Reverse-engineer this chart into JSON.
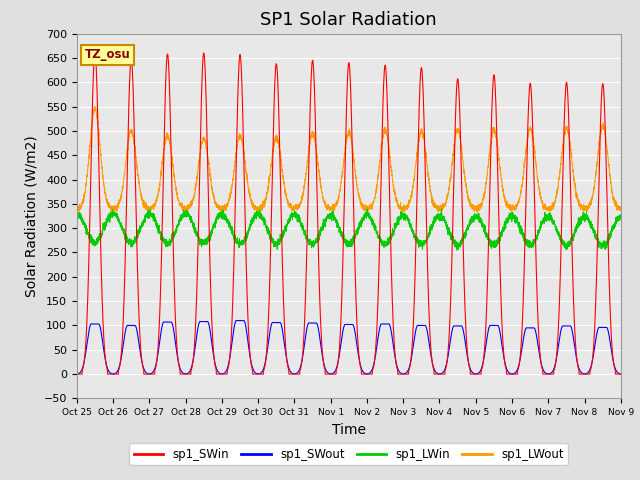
{
  "title": "SP1 Solar Radiation",
  "xlabel": "Time",
  "ylabel": "Solar Radiation (W/m2)",
  "ylim": [
    -50,
    700
  ],
  "tz_label": "TZ_osu",
  "colors": {
    "SWin": "#ff0000",
    "SWout": "#0000ff",
    "LWin": "#00cc00",
    "LWout": "#ff9900"
  },
  "legend": [
    "sp1_SWin",
    "sp1_SWout",
    "sp1_LWin",
    "sp1_LWout"
  ],
  "num_days": 15,
  "SWin_peaks": [
    660,
    648,
    658,
    660,
    657,
    638,
    645,
    640,
    635,
    630,
    607,
    615,
    598,
    600,
    597
  ],
  "SWout_peaks": [
    103,
    100,
    107,
    108,
    110,
    106,
    105,
    102,
    103,
    100,
    99,
    100,
    95,
    99,
    96
  ],
  "LWout_peaks": [
    545,
    500,
    490,
    485,
    490,
    487,
    495,
    498,
    502,
    499,
    502,
    502,
    505,
    507,
    510
  ],
  "LWin_base": 300,
  "LWout_base": 340,
  "background_color": "#e8e8e8",
  "grid_color": "#ffffff",
  "tick_labels": [
    "Oct 25",
    "Oct 26",
    "Oct 27",
    "Oct 28",
    "Oct 29",
    "Oct 30",
    "Oct 31",
    "Nov 1",
    "Nov 2",
    "Nov 3",
    "Nov 4",
    "Nov 5",
    "Nov 6",
    "Nov 7",
    "Nov 8",
    "Nov 9"
  ],
  "title_fontsize": 13,
  "axis_fontsize": 10
}
